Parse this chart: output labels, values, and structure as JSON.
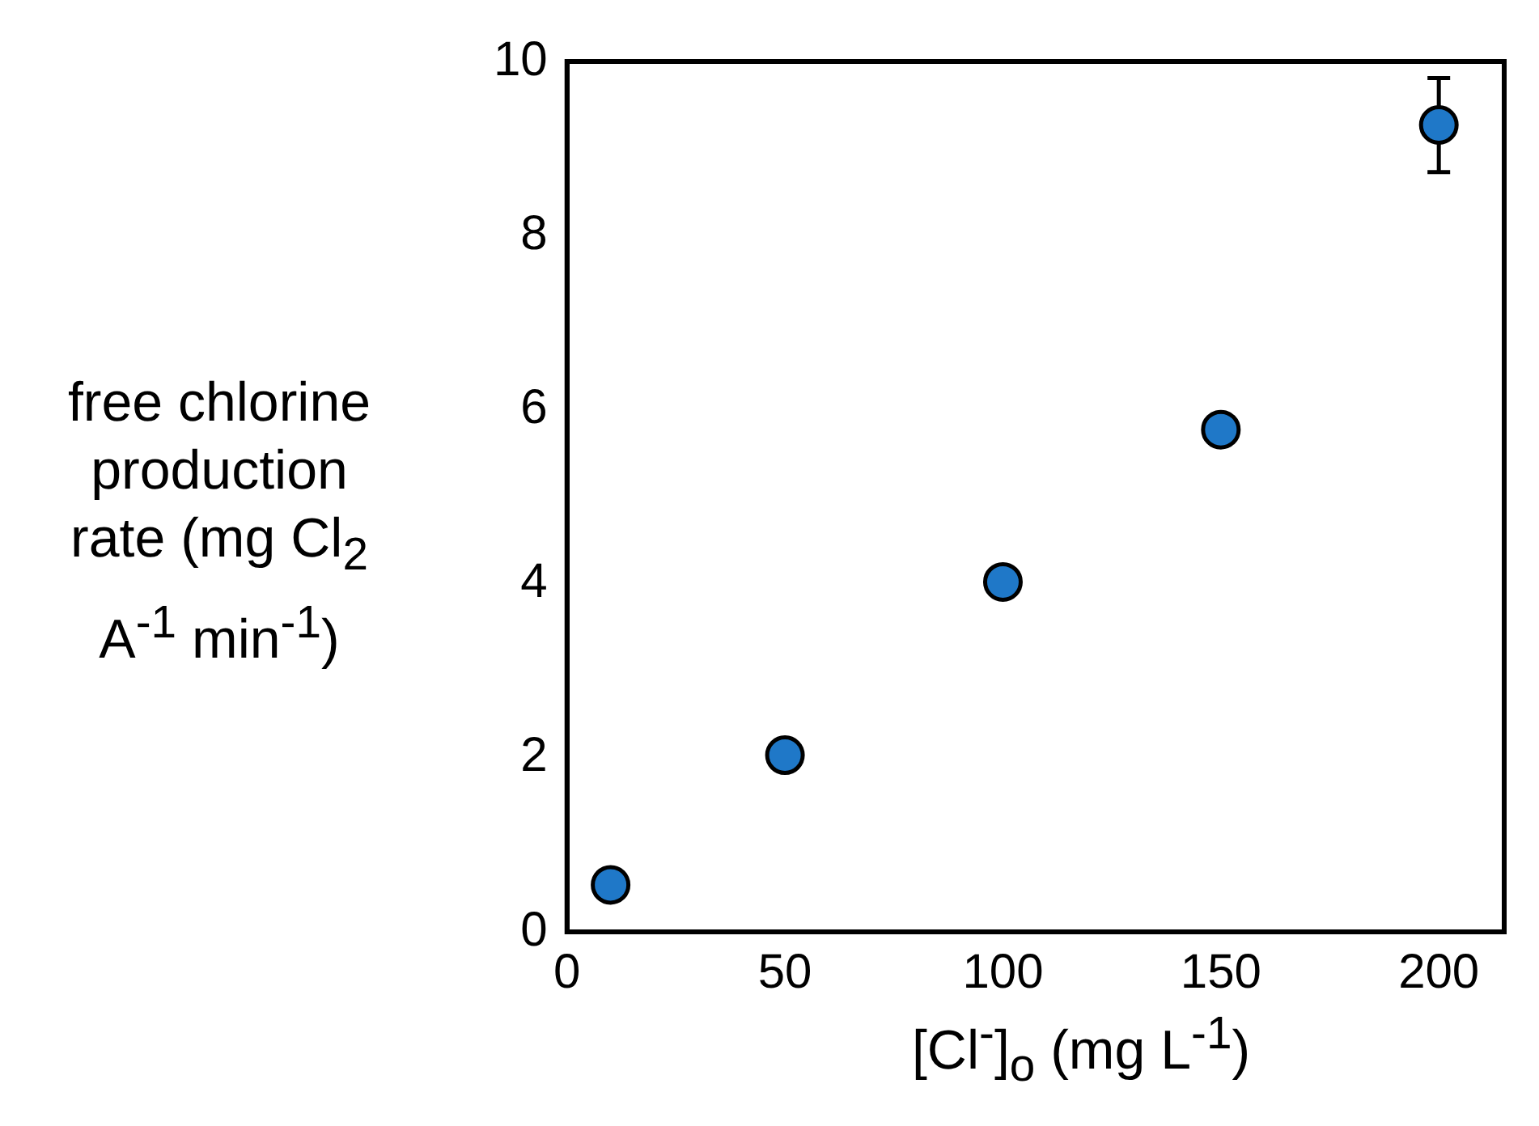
{
  "chart_data": {
    "type": "scatter",
    "xlabel": "[Cl$^{-}$]$_{o}$ (mg L$^{-1}$)",
    "ylabel": "free chlorine production rate (mg Cl$_{2}$ A$^{-1}$ min$^{-1}$)",
    "x": [
      10,
      50,
      100,
      150,
      200
    ],
    "series": [
      {
        "color": "#1f78c8",
        "values": [
          0.54,
          2.03,
          4.02,
          5.77,
          9.27
        ],
        "errors": [
          null,
          null,
          null,
          null,
          0.54
        ]
      }
    ],
    "xlim": [
      0,
      215
    ],
    "xticks": [
      0,
      50,
      100,
      150,
      200
    ],
    "ylim": [
      0,
      10
    ],
    "yticks": [
      0,
      2,
      4,
      6,
      8,
      10
    ],
    "grid": false,
    "legend": false,
    "marker": "circle"
  }
}
